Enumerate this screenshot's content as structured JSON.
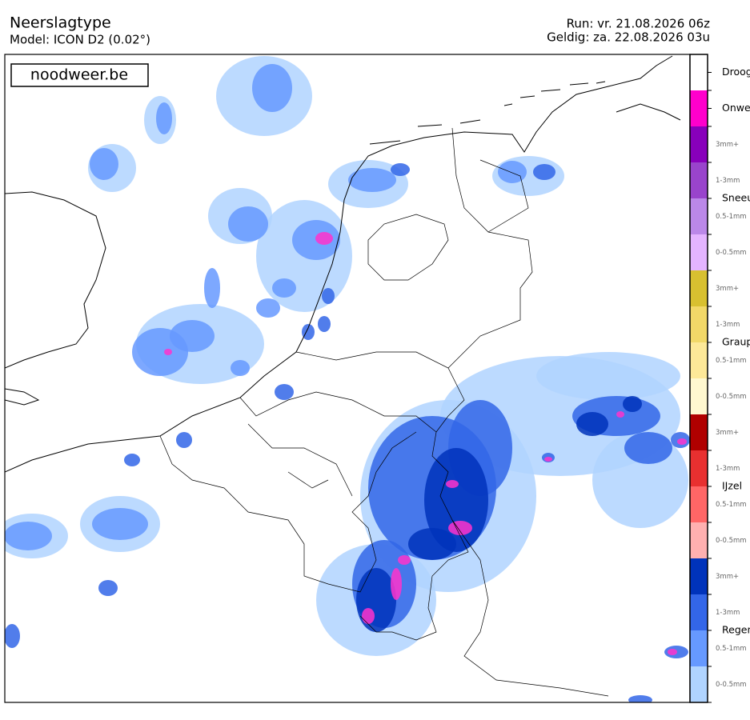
{
  "header": {
    "title": "Neerslagtype",
    "model": "Model: ICON D2 (0.02°)",
    "run": "Run: vr. 21.08.2026 06z",
    "valid": "Geldig: za. 22.08.2026 03u"
  },
  "logo": "noodweer.be",
  "legend": {
    "groups": [
      {
        "name": "Droog",
        "colors": [
          "#ffffff"
        ],
        "ranges": []
      },
      {
        "name": "Onwe",
        "colors": [
          "#ff00cc"
        ],
        "ranges": []
      },
      {
        "name": "Sneeu",
        "colors": [
          "#8800bb",
          "#9944cc",
          "#bb88e8",
          "#e4b4ff"
        ],
        "ranges": [
          "3mm+",
          "1-3mm",
          "0.5-1mm",
          "0-0.5mm"
        ]
      },
      {
        "name": "Graup",
        "colors": [
          "#d8c030",
          "#f2d868",
          "#fde898",
          "#fff8d0"
        ],
        "ranges": [
          "3mm+",
          "1-3mm",
          "0.5-1mm",
          "0-0.5mm"
        ]
      },
      {
        "name": "IJzel",
        "colors": [
          "#b00000",
          "#e83030",
          "#ff6666",
          "#ffb0b0"
        ],
        "ranges": [
          "3mm+",
          "1-3mm",
          "0.5-1mm",
          "0-0.5mm"
        ]
      },
      {
        "name": "Regen",
        "colors": [
          "#0033bb",
          "#3366e8",
          "#6699ff",
          "#b0d4ff"
        ],
        "ranges": [
          "3mm+",
          "1-3mm",
          "0.5-1mm",
          "0-0.5mm"
        ]
      }
    ]
  }
}
